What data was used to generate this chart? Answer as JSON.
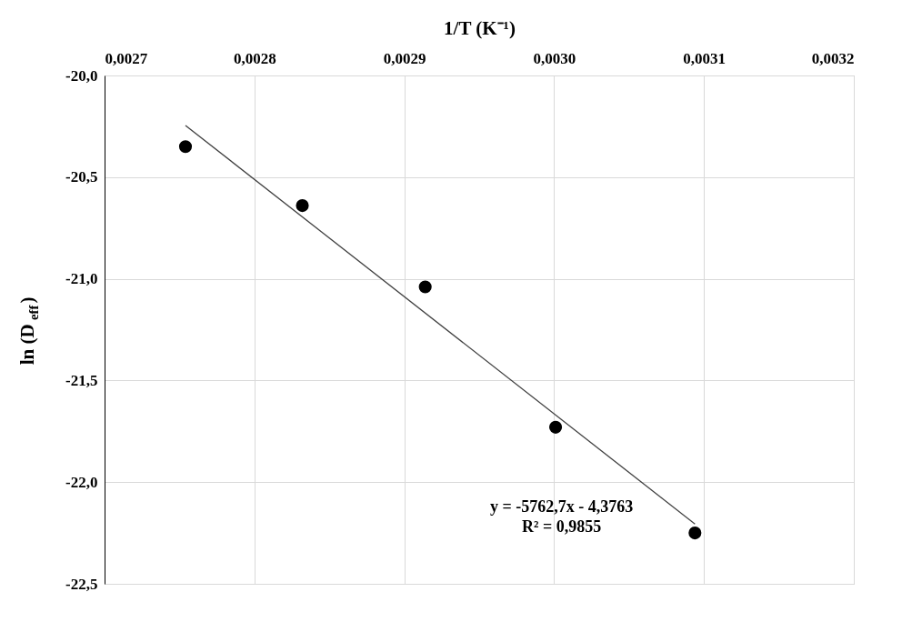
{
  "chart_data": {
    "type": "scatter",
    "xlabel": "1/T (K⁻¹)",
    "ylabel": "ln (D$_{eff}$)",
    "series": [
      {
        "type": "scatter",
        "color": "#000000",
        "marker": "circle",
        "x": [
          0.002754,
          0.002832,
          0.002914,
          0.003001,
          0.003094
        ],
        "values": [
          -20.35,
          -20.64,
          -21.04,
          -21.73,
          -22.25
        ]
      },
      {
        "type": "line",
        "color": "#404040",
        "marker": "none",
        "x": [
          0.002754,
          0.003094
        ],
        "values": [
          -20.246,
          -22.206
        ]
      }
    ],
    "xlim": [
      0.0027,
      0.0032
    ],
    "xticks": [
      {
        "value": 0.0027,
        "label": "0,0027"
      },
      {
        "value": 0.0028,
        "label": "0,0028"
      },
      {
        "value": 0.0029,
        "label": "0,0029"
      },
      {
        "value": 0.003,
        "label": "0,0030"
      },
      {
        "value": 0.0031,
        "label": "0,0031"
      },
      {
        "value": 0.0032,
        "label": "0,0032"
      }
    ],
    "ylim": [
      -22.5,
      -20.0
    ],
    "yticks": [
      {
        "value": -20.0,
        "label": "-20,0"
      },
      {
        "value": -20.5,
        "label": "-20,5"
      },
      {
        "value": -21.0,
        "label": "-21,0"
      },
      {
        "value": -21.5,
        "label": "-21,5"
      },
      {
        "value": -22.0,
        "label": "-22,0"
      },
      {
        "value": -22.5,
        "label": "-22,5"
      }
    ],
    "annotations": [
      "y = -5762,7x - 4,3763",
      "R² = 0,9855"
    ],
    "grid": true,
    "line_style": "solid"
  }
}
